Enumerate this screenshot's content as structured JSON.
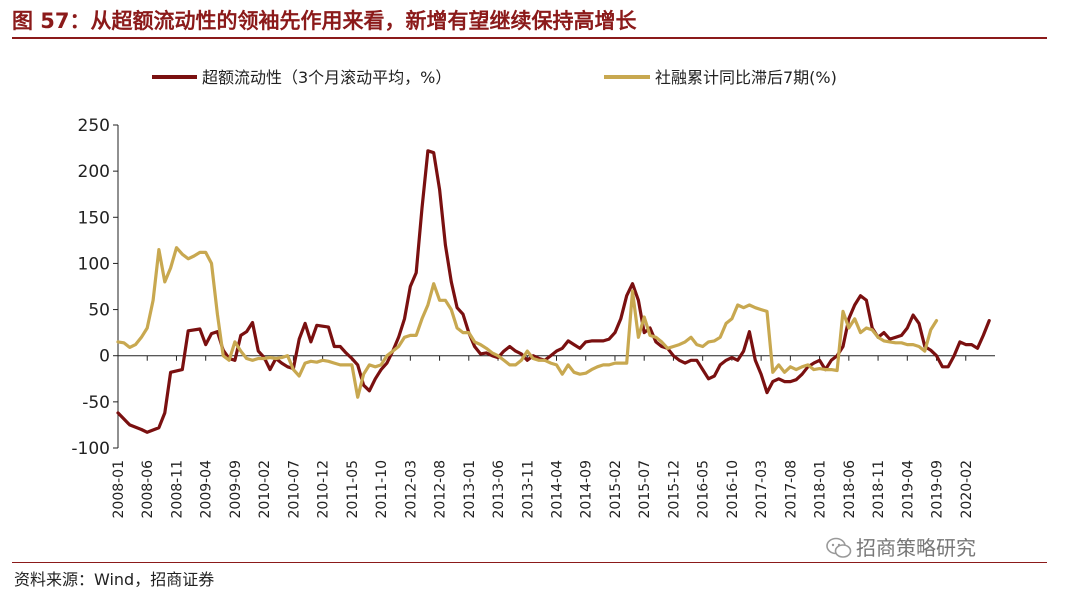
{
  "title": "图 57：从超额流动性的领袖先作用来看，新增有望继续保持高增长",
  "source": "资料来源：Wind，招商证券",
  "watermark": "招商策略研究",
  "watermark_icon": "wechat-icon",
  "colors": {
    "title": "#8b1a1a",
    "series1": "#7a1010",
    "series2": "#c8a850"
  },
  "chart_data": {
    "type": "line",
    "title": "图 57：从超额流动性的领袖先作用来看，新增有望继续保持高增长",
    "xlabel": "",
    "ylabel": "",
    "ylim": [
      -100,
      250
    ],
    "yticks": [
      -100,
      -50,
      0,
      50,
      100,
      150,
      200,
      250
    ],
    "grid": false,
    "legend_position": "top",
    "x_tick_labels": [
      "2008-01",
      "2008-06",
      "2008-11",
      "2009-04",
      "2009-09",
      "2010-02",
      "2010-07",
      "2010-12",
      "2011-05",
      "2011-10",
      "2012-03",
      "2012-08",
      "2013-01",
      "2013-06",
      "2013-11",
      "2014-04",
      "2014-09",
      "2015-02",
      "2015-07",
      "2015-12",
      "2016-05",
      "2016-10",
      "2017-03",
      "2017-08",
      "2018-01",
      "2018-06",
      "2018-11",
      "2019-04",
      "2019-09",
      "2020-02"
    ],
    "series": [
      {
        "name": "超额流动性（3个月滚动平均，%）",
        "points": [
          [
            "2008-01",
            -62
          ],
          [
            "2008-03",
            -75
          ],
          [
            "2008-05",
            -80
          ],
          [
            "2008-06",
            -83
          ],
          [
            "2008-08",
            -78
          ],
          [
            "2008-09",
            -62
          ],
          [
            "2008-10",
            -18
          ],
          [
            "2008-12",
            -15
          ],
          [
            "2009-01",
            27
          ],
          [
            "2009-03",
            29
          ],
          [
            "2009-04",
            12
          ],
          [
            "2009-05",
            24
          ],
          [
            "2009-06",
            26
          ],
          [
            "2009-07",
            6
          ],
          [
            "2009-08",
            -3
          ],
          [
            "2009-09",
            -5
          ],
          [
            "2009-10",
            22
          ],
          [
            "2009-11",
            26
          ],
          [
            "2009-12",
            36
          ],
          [
            "2010-01",
            5
          ],
          [
            "2010-02",
            -2
          ],
          [
            "2010-03",
            -15
          ],
          [
            "2010-04",
            -3
          ],
          [
            "2010-05",
            -8
          ],
          [
            "2010-06",
            -12
          ],
          [
            "2010-07",
            -14
          ],
          [
            "2010-08",
            18
          ],
          [
            "2010-09",
            35
          ],
          [
            "2010-10",
            15
          ],
          [
            "2010-11",
            33
          ],
          [
            "2010-12",
            32
          ],
          [
            "2011-01",
            31
          ],
          [
            "2011-02",
            10
          ],
          [
            "2011-03",
            10
          ],
          [
            "2011-04",
            3
          ],
          [
            "2011-05",
            -3
          ],
          [
            "2011-06",
            -10
          ],
          [
            "2011-07",
            -32
          ],
          [
            "2011-08",
            -38
          ],
          [
            "2011-09",
            -25
          ],
          [
            "2011-10",
            -15
          ],
          [
            "2011-11",
            -8
          ],
          [
            "2011-12",
            5
          ],
          [
            "2012-01",
            20
          ],
          [
            "2012-02",
            40
          ],
          [
            "2012-03",
            75
          ],
          [
            "2012-04",
            90
          ],
          [
            "2012-05",
            160
          ],
          [
            "2012-06",
            222
          ],
          [
            "2012-07",
            220
          ],
          [
            "2012-08",
            180
          ],
          [
            "2012-09",
            120
          ],
          [
            "2012-10",
            80
          ],
          [
            "2012-11",
            52
          ],
          [
            "2012-12",
            45
          ],
          [
            "2013-01",
            25
          ],
          [
            "2013-02",
            10
          ],
          [
            "2013-03",
            2
          ],
          [
            "2013-04",
            3
          ],
          [
            "2013-05",
            0
          ],
          [
            "2013-06",
            -2
          ],
          [
            "2013-07",
            5
          ],
          [
            "2013-08",
            10
          ],
          [
            "2013-09",
            5
          ],
          [
            "2013-10",
            2
          ],
          [
            "2013-11",
            -5
          ],
          [
            "2013-12",
            0
          ],
          [
            "2014-01",
            -3
          ],
          [
            "2014-02",
            -5
          ],
          [
            "2014-03",
            0
          ],
          [
            "2014-04",
            5
          ],
          [
            "2014-05",
            8
          ],
          [
            "2014-06",
            16
          ],
          [
            "2014-07",
            12
          ],
          [
            "2014-08",
            8
          ],
          [
            "2014-09",
            15
          ],
          [
            "2014-10",
            16
          ],
          [
            "2014-11",
            16
          ],
          [
            "2014-12",
            16
          ],
          [
            "2015-01",
            18
          ],
          [
            "2015-02",
            25
          ],
          [
            "2015-03",
            40
          ],
          [
            "2015-04",
            65
          ],
          [
            "2015-05",
            78
          ],
          [
            "2015-06",
            60
          ],
          [
            "2015-07",
            25
          ],
          [
            "2015-08",
            30
          ],
          [
            "2015-09",
            15
          ],
          [
            "2015-10",
            10
          ],
          [
            "2015-11",
            8
          ],
          [
            "2015-12",
            0
          ],
          [
            "2016-01",
            -5
          ],
          [
            "2016-02",
            -8
          ],
          [
            "2016-03",
            -5
          ],
          [
            "2016-04",
            -5
          ],
          [
            "2016-05",
            -15
          ],
          [
            "2016-06",
            -25
          ],
          [
            "2016-07",
            -22
          ],
          [
            "2016-08",
            -10
          ],
          [
            "2016-09",
            -5
          ],
          [
            "2016-10",
            -2
          ],
          [
            "2016-11",
            -5
          ],
          [
            "2016-12",
            5
          ],
          [
            "2017-01",
            26
          ],
          [
            "2017-02",
            -5
          ],
          [
            "2017-03",
            -20
          ],
          [
            "2017-04",
            -40
          ],
          [
            "2017-05",
            -28
          ],
          [
            "2017-06",
            -25
          ],
          [
            "2017-07",
            -28
          ],
          [
            "2017-08",
            -28
          ],
          [
            "2017-09",
            -26
          ],
          [
            "2017-10",
            -20
          ],
          [
            "2017-11",
            -12
          ],
          [
            "2017-12",
            -8
          ],
          [
            "2018-01",
            -5
          ],
          [
            "2018-02",
            -15
          ],
          [
            "2018-03",
            -5
          ],
          [
            "2018-04",
            0
          ],
          [
            "2018-05",
            10
          ],
          [
            "2018-06",
            40
          ],
          [
            "2018-07",
            55
          ],
          [
            "2018-08",
            65
          ],
          [
            "2018-09",
            60
          ],
          [
            "2018-10",
            30
          ],
          [
            "2018-11",
            20
          ],
          [
            "2018-12",
            25
          ],
          [
            "2019-01",
            18
          ],
          [
            "2019-02",
            20
          ],
          [
            "2019-03",
            22
          ],
          [
            "2019-04",
            30
          ],
          [
            "2019-05",
            44
          ],
          [
            "2019-06",
            35
          ],
          [
            "2019-07",
            10
          ],
          [
            "2019-08",
            6
          ],
          [
            "2019-09",
            0
          ],
          [
            "2019-10",
            -12
          ],
          [
            "2019-11",
            -12
          ],
          [
            "2019-12",
            0
          ],
          [
            "2020-01",
            15
          ],
          [
            "2020-02",
            12
          ],
          [
            "2020-03",
            12
          ],
          [
            "2020-04",
            8
          ],
          [
            "2020-05",
            22
          ],
          [
            "2020-06",
            38
          ]
        ]
      },
      {
        "name": "社融累计同比滞后7期(%)",
        "points": [
          [
            "2008-01",
            15
          ],
          [
            "2008-02",
            14
          ],
          [
            "2008-03",
            9
          ],
          [
            "2008-04",
            12
          ],
          [
            "2008-05",
            20
          ],
          [
            "2008-06",
            30
          ],
          [
            "2008-07",
            60
          ],
          [
            "2008-08",
            115
          ],
          [
            "2008-09",
            80
          ],
          [
            "2008-10",
            95
          ],
          [
            "2008-11",
            117
          ],
          [
            "2008-12",
            110
          ],
          [
            "2009-01",
            105
          ],
          [
            "2009-02",
            108
          ],
          [
            "2009-03",
            112
          ],
          [
            "2009-04",
            112
          ],
          [
            "2009-05",
            100
          ],
          [
            "2009-06",
            45
          ],
          [
            "2009-07",
            0
          ],
          [
            "2009-08",
            -5
          ],
          [
            "2009-09",
            15
          ],
          [
            "2009-10",
            5
          ],
          [
            "2009-11",
            -3
          ],
          [
            "2009-12",
            -5
          ],
          [
            "2010-01",
            -3
          ],
          [
            "2010-02",
            -3
          ],
          [
            "2010-03",
            -2
          ],
          [
            "2010-04",
            -3
          ],
          [
            "2010-05",
            -2
          ],
          [
            "2010-06",
            0
          ],
          [
            "2010-07",
            -15
          ],
          [
            "2010-08",
            -22
          ],
          [
            "2010-09",
            -8
          ],
          [
            "2010-10",
            -6
          ],
          [
            "2010-11",
            -7
          ],
          [
            "2010-12",
            -5
          ],
          [
            "2011-01",
            -6
          ],
          [
            "2011-02",
            -8
          ],
          [
            "2011-03",
            -10
          ],
          [
            "2011-04",
            -10
          ],
          [
            "2011-05",
            -10
          ],
          [
            "2011-06",
            -45
          ],
          [
            "2011-07",
            -20
          ],
          [
            "2011-08",
            -10
          ],
          [
            "2011-09",
            -12
          ],
          [
            "2011-10",
            -10
          ],
          [
            "2011-11",
            0
          ],
          [
            "2011-12",
            5
          ],
          [
            "2012-01",
            10
          ],
          [
            "2012-02",
            20
          ],
          [
            "2012-03",
            22
          ],
          [
            "2012-04",
            22
          ],
          [
            "2012-05",
            40
          ],
          [
            "2012-06",
            55
          ],
          [
            "2012-07",
            78
          ],
          [
            "2012-08",
            60
          ],
          [
            "2012-09",
            60
          ],
          [
            "2012-10",
            50
          ],
          [
            "2012-11",
            30
          ],
          [
            "2012-12",
            25
          ],
          [
            "2013-01",
            25
          ],
          [
            "2013-02",
            15
          ],
          [
            "2013-03",
            12
          ],
          [
            "2013-04",
            8
          ],
          [
            "2013-05",
            3
          ],
          [
            "2013-06",
            0
          ],
          [
            "2013-07",
            -5
          ],
          [
            "2013-08",
            -10
          ],
          [
            "2013-09",
            -10
          ],
          [
            "2013-10",
            -5
          ],
          [
            "2013-11",
            5
          ],
          [
            "2013-12",
            -3
          ],
          [
            "2014-01",
            -5
          ],
          [
            "2014-02",
            -5
          ],
          [
            "2014-03",
            -8
          ],
          [
            "2014-04",
            -10
          ],
          [
            "2014-05",
            -20
          ],
          [
            "2014-06",
            -10
          ],
          [
            "2014-07",
            -18
          ],
          [
            "2014-08",
            -20
          ],
          [
            "2014-09",
            -19
          ],
          [
            "2014-10",
            -15
          ],
          [
            "2014-11",
            -12
          ],
          [
            "2014-12",
            -10
          ],
          [
            "2015-01",
            -10
          ],
          [
            "2015-02",
            -8
          ],
          [
            "2015-03",
            -8
          ],
          [
            "2015-04",
            -8
          ],
          [
            "2015-05",
            70
          ],
          [
            "2015-06",
            20
          ],
          [
            "2015-07",
            42
          ],
          [
            "2015-08",
            22
          ],
          [
            "2015-09",
            20
          ],
          [
            "2015-10",
            15
          ],
          [
            "2015-11",
            8
          ],
          [
            "2015-12",
            10
          ],
          [
            "2016-01",
            12
          ],
          [
            "2016-02",
            15
          ],
          [
            "2016-03",
            20
          ],
          [
            "2016-04",
            12
          ],
          [
            "2016-05",
            10
          ],
          [
            "2016-06",
            15
          ],
          [
            "2016-07",
            16
          ],
          [
            "2016-08",
            20
          ],
          [
            "2016-09",
            35
          ],
          [
            "2016-10",
            40
          ],
          [
            "2016-11",
            55
          ],
          [
            "2016-12",
            52
          ],
          [
            "2017-01",
            55
          ],
          [
            "2017-02",
            52
          ],
          [
            "2017-03",
            50
          ],
          [
            "2017-04",
            48
          ],
          [
            "2017-05",
            -18
          ],
          [
            "2017-06",
            -10
          ],
          [
            "2017-07",
            -18
          ],
          [
            "2017-08",
            -12
          ],
          [
            "2017-09",
            -15
          ],
          [
            "2017-10",
            -12
          ],
          [
            "2017-11",
            -10
          ],
          [
            "2017-12",
            -15
          ],
          [
            "2018-01",
            -14
          ],
          [
            "2018-02",
            -15
          ],
          [
            "2018-03",
            -15
          ],
          [
            "2018-04",
            -16
          ],
          [
            "2018-05",
            48
          ],
          [
            "2018-06",
            30
          ],
          [
            "2018-07",
            40
          ],
          [
            "2018-08",
            25
          ],
          [
            "2018-09",
            30
          ],
          [
            "2018-10",
            28
          ],
          [
            "2018-11",
            20
          ],
          [
            "2018-12",
            16
          ],
          [
            "2019-01",
            15
          ],
          [
            "2019-02",
            14
          ],
          [
            "2019-03",
            14
          ],
          [
            "2019-04",
            12
          ],
          [
            "2019-05",
            12
          ],
          [
            "2019-06",
            10
          ],
          [
            "2019-07",
            5
          ],
          [
            "2019-08",
            28
          ],
          [
            "2019-09",
            38
          ]
        ]
      }
    ]
  }
}
